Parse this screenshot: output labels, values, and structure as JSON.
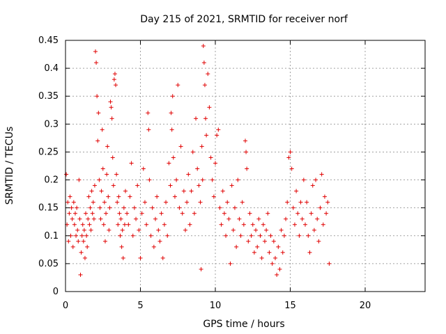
{
  "chart_data": {
    "type": "scatter",
    "title": "Day 215 of 2021, SRMTID for receiver norf",
    "xlabel": "GPS time / hours",
    "ylabel": "SRMTID / TECUs",
    "xlim": [
      0,
      24
    ],
    "ylim": [
      0,
      0.45
    ],
    "xticks": [
      0,
      5,
      10,
      15,
      20
    ],
    "xtick_labels": [
      "0",
      "5",
      "10",
      "15",
      "20"
    ],
    "yticks": [
      0,
      0.05,
      0.1,
      0.15,
      0.2,
      0.25,
      0.3,
      0.35,
      0.4,
      0.45
    ],
    "ytick_labels": [
      "0",
      "0.05",
      "0.1",
      "0.15",
      "0.2",
      "0.25",
      "0.3",
      "0.35",
      "0.4",
      "0.45"
    ],
    "grid": true,
    "marker": "+",
    "color": "#e00000",
    "series": [
      {
        "name": "SRMTID",
        "points": [
          [
            0.05,
            0.21
          ],
          [
            0.1,
            0.12
          ],
          [
            0.15,
            0.16
          ],
          [
            0.2,
            0.09
          ],
          [
            0.25,
            0.14
          ],
          [
            0.3,
            0.17
          ],
          [
            0.35,
            0.1
          ],
          [
            0.4,
            0.15
          ],
          [
            0.45,
            0.13
          ],
          [
            0.5,
            0.08
          ],
          [
            0.55,
            0.16
          ],
          [
            0.6,
            0.12
          ],
          [
            0.65,
            0.14
          ],
          [
            0.7,
            0.1
          ],
          [
            0.75,
            0.15
          ],
          [
            0.8,
            0.11
          ],
          [
            0.85,
            0.09
          ],
          [
            0.9,
            0.2
          ],
          [
            0.95,
            0.13
          ],
          [
            1.0,
            0.03
          ],
          [
            1.05,
            0.07
          ],
          [
            1.1,
            0.1
          ],
          [
            1.15,
            0.12
          ],
          [
            1.2,
            0.09
          ],
          [
            1.25,
            0.11
          ],
          [
            1.3,
            0.06
          ],
          [
            1.35,
            0.14
          ],
          [
            1.4,
            0.1
          ],
          [
            1.45,
            0.08
          ],
          [
            1.5,
            0.13
          ],
          [
            1.55,
            0.17
          ],
          [
            1.6,
            0.12
          ],
          [
            1.65,
            0.15
          ],
          [
            1.7,
            0.11
          ],
          [
            1.75,
            0.18
          ],
          [
            1.8,
            0.14
          ],
          [
            1.85,
            0.16
          ],
          [
            1.9,
            0.13
          ],
          [
            1.95,
            0.19
          ],
          [
            2.0,
            0.43
          ],
          [
            2.05,
            0.41
          ],
          [
            2.1,
            0.35
          ],
          [
            2.15,
            0.27
          ],
          [
            2.2,
            0.32
          ],
          [
            2.25,
            0.2
          ],
          [
            2.3,
            0.15
          ],
          [
            2.35,
            0.13
          ],
          [
            2.4,
            0.18
          ],
          [
            2.45,
            0.29
          ],
          [
            2.5,
            0.22
          ],
          [
            2.55,
            0.12
          ],
          [
            2.6,
            0.16
          ],
          [
            2.65,
            0.09
          ],
          [
            2.7,
            0.14
          ],
          [
            2.75,
            0.21
          ],
          [
            2.8,
            0.26
          ],
          [
            2.85,
            0.17
          ],
          [
            2.9,
            0.11
          ],
          [
            2.95,
            0.15
          ],
          [
            3.0,
            0.34
          ],
          [
            3.05,
            0.33
          ],
          [
            3.1,
            0.31
          ],
          [
            3.15,
            0.24
          ],
          [
            3.2,
            0.19
          ],
          [
            3.25,
            0.38
          ],
          [
            3.3,
            0.39
          ],
          [
            3.35,
            0.37
          ],
          [
            3.4,
            0.21
          ],
          [
            3.45,
            0.16
          ],
          [
            3.5,
            0.12
          ],
          [
            3.55,
            0.17
          ],
          [
            3.6,
            0.14
          ],
          [
            3.65,
            0.1
          ],
          [
            3.7,
            0.13
          ],
          [
            3.75,
            0.08
          ],
          [
            3.8,
            0.11
          ],
          [
            3.85,
            0.06
          ],
          [
            3.9,
            0.15
          ],
          [
            3.95,
            0.12
          ],
          [
            4.0,
            0.18
          ],
          [
            4.1,
            0.14
          ],
          [
            4.2,
            0.12
          ],
          [
            4.3,
            0.17
          ],
          [
            4.4,
            0.23
          ],
          [
            4.5,
            0.1
          ],
          [
            4.6,
            0.15
          ],
          [
            4.7,
            0.13
          ],
          [
            4.8,
            0.19
          ],
          [
            4.9,
            0.11
          ],
          [
            5.0,
            0.06
          ],
          [
            5.1,
            0.14
          ],
          [
            5.2,
            0.22
          ],
          [
            5.3,
            0.16
          ],
          [
            5.4,
            0.12
          ],
          [
            5.5,
            0.32
          ],
          [
            5.55,
            0.29
          ],
          [
            5.6,
            0.2
          ],
          [
            5.7,
            0.1
          ],
          [
            5.8,
            0.15
          ],
          [
            5.9,
            0.08
          ],
          [
            6.0,
            0.13
          ],
          [
            6.1,
            0.17
          ],
          [
            6.2,
            0.11
          ],
          [
            6.3,
            0.09
          ],
          [
            6.4,
            0.14
          ],
          [
            6.5,
            0.06
          ],
          [
            6.6,
            0.12
          ],
          [
            6.7,
            0.16
          ],
          [
            6.8,
            0.1
          ],
          [
            6.9,
            0.23
          ],
          [
            7.0,
            0.19
          ],
          [
            7.05,
            0.32
          ],
          [
            7.1,
            0.29
          ],
          [
            7.15,
            0.35
          ],
          [
            7.2,
            0.24
          ],
          [
            7.3,
            0.17
          ],
          [
            7.4,
            0.2
          ],
          [
            7.5,
            0.37
          ],
          [
            7.6,
            0.15
          ],
          [
            7.7,
            0.26
          ],
          [
            7.8,
            0.14
          ],
          [
            7.9,
            0.18
          ],
          [
            8.0,
            0.11
          ],
          [
            8.1,
            0.16
          ],
          [
            8.2,
            0.21
          ],
          [
            8.3,
            0.12
          ],
          [
            8.4,
            0.18
          ],
          [
            8.5,
            0.25
          ],
          [
            8.6,
            0.14
          ],
          [
            8.7,
            0.31
          ],
          [
            8.8,
            0.22
          ],
          [
            8.9,
            0.19
          ],
          [
            9.0,
            0.16
          ],
          [
            9.05,
            0.04
          ],
          [
            9.1,
            0.26
          ],
          [
            9.15,
            0.2
          ],
          [
            9.2,
            0.44
          ],
          [
            9.25,
            0.41
          ],
          [
            9.3,
            0.37
          ],
          [
            9.35,
            0.31
          ],
          [
            9.4,
            0.28
          ],
          [
            9.5,
            0.39
          ],
          [
            9.6,
            0.33
          ],
          [
            9.7,
            0.24
          ],
          [
            9.8,
            0.2
          ],
          [
            9.9,
            0.17
          ],
          [
            10.0,
            0.23
          ],
          [
            10.1,
            0.28
          ],
          [
            10.2,
            0.29
          ],
          [
            10.3,
            0.15
          ],
          [
            10.4,
            0.12
          ],
          [
            10.5,
            0.18
          ],
          [
            10.6,
            0.14
          ],
          [
            10.7,
            0.1
          ],
          [
            10.8,
            0.16
          ],
          [
            10.9,
            0.13
          ],
          [
            11.0,
            0.05
          ],
          [
            11.1,
            0.19
          ],
          [
            11.2,
            0.11
          ],
          [
            11.3,
            0.15
          ],
          [
            11.4,
            0.08
          ],
          [
            11.5,
            0.2
          ],
          [
            11.6,
            0.13
          ],
          [
            11.7,
            0.1
          ],
          [
            11.8,
            0.16
          ],
          [
            11.9,
            0.12
          ],
          [
            12.0,
            0.27
          ],
          [
            12.05,
            0.25
          ],
          [
            12.1,
            0.22
          ],
          [
            12.2,
            0.09
          ],
          [
            12.3,
            0.14
          ],
          [
            12.4,
            0.1
          ],
          [
            12.5,
            0.12
          ],
          [
            12.6,
            0.07
          ],
          [
            12.7,
            0.11
          ],
          [
            12.8,
            0.08
          ],
          [
            12.9,
            0.13
          ],
          [
            13.0,
            0.1
          ],
          [
            13.1,
            0.06
          ],
          [
            13.2,
            0.12
          ],
          [
            13.3,
            0.09
          ],
          [
            13.4,
            0.11
          ],
          [
            13.5,
            0.14
          ],
          [
            13.6,
            0.07
          ],
          [
            13.7,
            0.1
          ],
          [
            13.8,
            0.05
          ],
          [
            13.9,
            0.09
          ],
          [
            14.0,
            0.06
          ],
          [
            14.1,
            0.03
          ],
          [
            14.2,
            0.08
          ],
          [
            14.3,
            0.04
          ],
          [
            14.4,
            0.11
          ],
          [
            14.5,
            0.07
          ],
          [
            14.6,
            0.1
          ],
          [
            14.7,
            0.13
          ],
          [
            14.8,
            0.16
          ],
          [
            14.9,
            0.24
          ],
          [
            15.0,
            0.25
          ],
          [
            15.1,
            0.22
          ],
          [
            15.2,
            0.15
          ],
          [
            15.3,
            0.12
          ],
          [
            15.4,
            0.18
          ],
          [
            15.5,
            0.14
          ],
          [
            15.6,
            0.1
          ],
          [
            15.7,
            0.16
          ],
          [
            15.8,
            0.13
          ],
          [
            15.9,
            0.2
          ],
          [
            16.0,
            0.12
          ],
          [
            16.1,
            0.16
          ],
          [
            16.2,
            0.1
          ],
          [
            16.3,
            0.07
          ],
          [
            16.4,
            0.14
          ],
          [
            16.5,
            0.19
          ],
          [
            16.6,
            0.11
          ],
          [
            16.7,
            0.2
          ],
          [
            16.8,
            0.13
          ],
          [
            16.9,
            0.09
          ],
          [
            17.0,
            0.15
          ],
          [
            17.1,
            0.21
          ],
          [
            17.2,
            0.12
          ],
          [
            17.3,
            0.17
          ],
          [
            17.4,
            0.14
          ],
          [
            17.5,
            0.16
          ],
          [
            17.6,
            0.05
          ]
        ]
      }
    ]
  }
}
